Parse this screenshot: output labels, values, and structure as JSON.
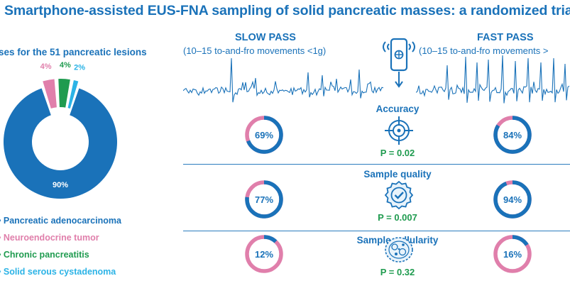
{
  "title": "Smartphone-assisted EUS-FNA sampling of solid pancreatic masses: a randomized trial",
  "lesions_title": "ses for the 51 pancreatic lesions",
  "slow_pass": {
    "title": "SLOW PASS",
    "subtitle": "(10–15 to-and-fro movements <1g)"
  },
  "fast_pass": {
    "title": "FAST PASS",
    "subtitle": "(10–15 to-and-fro movements >"
  },
  "colors": {
    "blue": "#1a72b9",
    "pink": "#e07fab",
    "green": "#1f9b4f",
    "cyan": "#2bb3e6"
  },
  "chart_data": {
    "type": "pie",
    "categories": [
      "Pancreatic adenocarcinoma",
      "Neuroendocrine tumor",
      "Chronic pancreatitis",
      "Solid serous cystadenoma"
    ],
    "values": [
      90,
      4,
      4,
      2
    ],
    "labels": [
      "90%",
      "4%",
      "4%",
      "2%"
    ]
  },
  "legend": [
    {
      "label": "Pancreatic adenocarcinoma",
      "color": "#1a72b9"
    },
    {
      "label": "Neuroendocrine tumor",
      "color": "#e07fab"
    },
    {
      "label": "Chronic pancreatitis",
      "color": "#1f9b4f"
    },
    {
      "label": "Solid serous cystadenoma",
      "color": "#2bb3e6"
    }
  ],
  "metrics": [
    {
      "title": "Accuracy",
      "icon": "crosshair-icon",
      "p_value": "P = 0.02",
      "slow": 69,
      "slow_label": "69%",
      "fast": 84,
      "fast_label": "84%"
    },
    {
      "title": "Sample quality",
      "icon": "check-badge-icon",
      "p_value": "P = 0.007",
      "slow": 77,
      "slow_label": "77%",
      "fast": 94,
      "fast_label": "94%"
    },
    {
      "title": "Sample cellularity",
      "icon": "cell-icon",
      "p_value": "P = 0.32",
      "slow": 12,
      "slow_label": "12%",
      "fast": 16,
      "fast_label": "16%"
    }
  ],
  "header_icon": "smartphone-accelerometer-icon"
}
